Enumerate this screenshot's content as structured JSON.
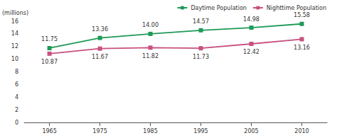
{
  "chart_data": {
    "type": "line",
    "y_label": "(millions)",
    "categories": [
      "1965",
      "1975",
      "1985",
      "1995",
      "2005",
      "2010"
    ],
    "series": [
      {
        "name": "Daytime Population",
        "color": "#1e9a57",
        "marker": "square",
        "values": [
          11.75,
          13.36,
          14.0,
          14.57,
          14.98,
          15.58
        ],
        "value_labels": [
          "11.75",
          "13.36",
          "14.00",
          "14.57",
          "14.98",
          "15.58"
        ]
      },
      {
        "name": "Nighttime Population",
        "color": "#c8507f",
        "marker": "square",
        "values": [
          10.87,
          11.67,
          11.82,
          11.73,
          12.42,
          13.16
        ],
        "value_labels": [
          "10.87",
          "11.67",
          "11.82",
          "11.73",
          "12.42",
          "13.16"
        ]
      }
    ],
    "ylim": [
      0,
      16
    ],
    "yticks": [
      0,
      2,
      4,
      6,
      8,
      10,
      12,
      14,
      16
    ],
    "grid": false,
    "legend": "top-right",
    "data_labels": true
  }
}
